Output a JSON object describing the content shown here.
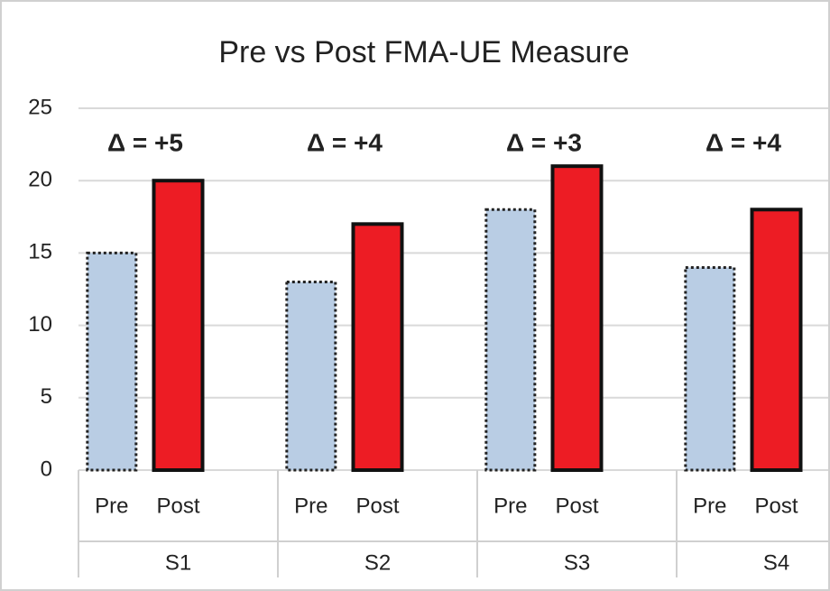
{
  "chart_data": {
    "type": "grouped_bar",
    "title": "Pre vs Post FMA-UE Measure",
    "groups": [
      "S1",
      "S2",
      "S3",
      "S4"
    ],
    "series": [
      {
        "name": "Pre",
        "color": "#b9cde4",
        "values": [
          15,
          13,
          18,
          14
        ]
      },
      {
        "name": "Post",
        "color": "#ed1c24",
        "values": [
          20,
          17,
          21,
          18
        ]
      }
    ],
    "annotations": [
      "Δ = +5",
      "Δ = +4",
      "Δ = +3",
      "Δ = +4"
    ],
    "ylim": [
      0,
      25
    ],
    "yticks": [
      0,
      5,
      10,
      15,
      20,
      25
    ],
    "grid": true
  }
}
